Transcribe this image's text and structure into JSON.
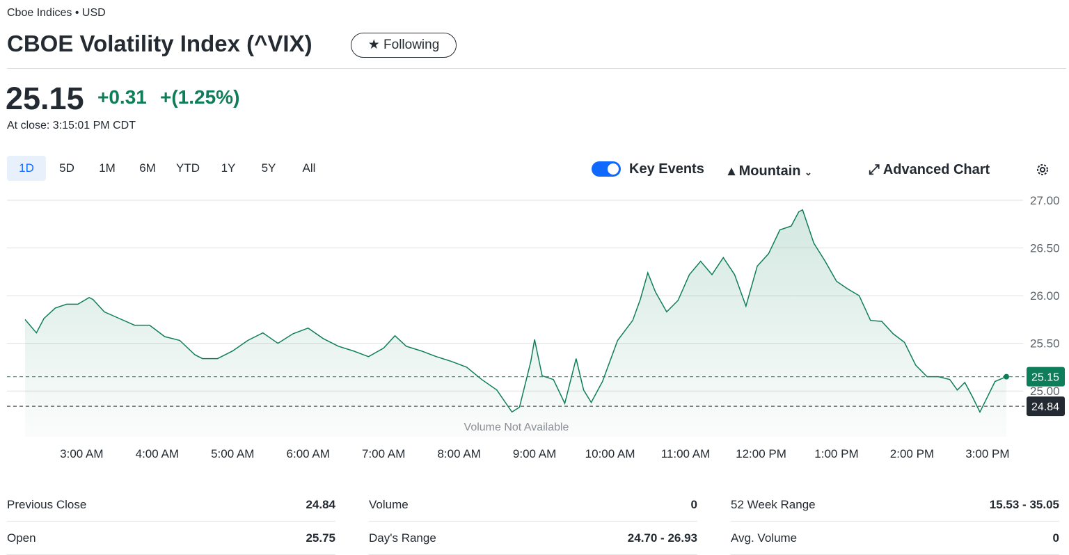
{
  "header": {
    "exchange": "Cboe Indices • USD",
    "title": "CBOE Volatility Index (^VIX)",
    "follow_button": "Following"
  },
  "quote": {
    "price": "25.15",
    "change": "+0.31",
    "change_pct": "+(1.25%)",
    "close_time": "At close: 3:15:01 PM CDT"
  },
  "ranges": [
    "1D",
    "5D",
    "1M",
    "6M",
    "YTD",
    "1Y",
    "5Y",
    "All"
  ],
  "toolbar": {
    "key_events": "Key Events",
    "chart_type": "Mountain",
    "advanced": "Advanced Chart"
  },
  "chart_data": {
    "type": "line",
    "color": "#0e7e5a",
    "x": [
      2.25,
      2.4,
      2.5,
      2.65,
      2.8,
      2.95,
      3.1,
      3.15,
      3.3,
      3.5,
      3.7,
      3.9,
      4.1,
      4.3,
      4.5,
      4.6,
      4.8,
      5.0,
      5.2,
      5.4,
      5.6,
      5.8,
      6.0,
      6.2,
      6.4,
      6.6,
      6.8,
      7.0,
      7.15,
      7.3,
      7.5,
      7.7,
      7.9,
      8.1,
      8.3,
      8.5,
      8.7,
      8.8,
      8.95,
      9.0,
      9.1,
      9.25,
      9.4,
      9.55,
      9.65,
      9.75,
      9.9,
      10.1,
      10.3,
      10.4,
      10.5,
      10.6,
      10.75,
      10.9,
      11.05,
      11.2,
      11.35,
      11.5,
      11.65,
      11.8,
      11.95,
      12.1,
      12.25,
      12.4,
      12.5,
      12.55,
      12.7,
      12.85,
      13.0,
      13.15,
      13.3,
      13.45,
      13.6,
      13.75,
      13.9,
      14.05,
      14.2,
      14.35,
      14.5,
      14.6,
      14.7,
      14.8,
      14.9,
      15.0,
      15.1,
      15.25
    ],
    "values": [
      25.75,
      25.61,
      25.76,
      25.87,
      25.91,
      25.91,
      25.98,
      25.96,
      25.83,
      25.76,
      25.69,
      25.69,
      25.57,
      25.53,
      25.38,
      25.34,
      25.34,
      25.42,
      25.53,
      25.61,
      25.5,
      25.6,
      25.66,
      25.55,
      25.47,
      25.42,
      25.36,
      25.45,
      25.58,
      25.47,
      25.42,
      25.36,
      25.31,
      25.25,
      25.12,
      25.01,
      24.78,
      24.83,
      25.31,
      25.54,
      25.16,
      25.12,
      24.87,
      25.34,
      25.01,
      24.88,
      25.1,
      25.53,
      25.74,
      25.96,
      26.24,
      26.04,
      25.83,
      25.95,
      26.22,
      26.36,
      26.22,
      26.4,
      26.22,
      25.89,
      26.31,
      26.44,
      26.69,
      26.73,
      26.88,
      26.9,
      26.55,
      26.36,
      26.15,
      26.07,
      26.0,
      25.74,
      25.73,
      25.6,
      25.51,
      25.27,
      25.15,
      25.15,
      25.12,
      25.01,
      25.09,
      24.94,
      24.78,
      24.94,
      25.1,
      25.15
    ],
    "xlim": [
      2.25,
      15.25
    ],
    "xticks": [
      {
        "value": 3,
        "label": "3:00 AM"
      },
      {
        "value": 4,
        "label": "4:00 AM"
      },
      {
        "value": 5,
        "label": "5:00 AM"
      },
      {
        "value": 6,
        "label": "6:00 AM"
      },
      {
        "value": 7,
        "label": "7:00 AM"
      },
      {
        "value": 8,
        "label": "8:00 AM"
      },
      {
        "value": 9,
        "label": "9:00 AM"
      },
      {
        "value": 10,
        "label": "10:00 AM"
      },
      {
        "value": 11,
        "label": "11:00 AM"
      },
      {
        "value": 12,
        "label": "12:00 PM"
      },
      {
        "value": 13,
        "label": "1:00 PM"
      },
      {
        "value": 14,
        "label": "2:00 PM"
      },
      {
        "value": 15,
        "label": "3:00 PM"
      }
    ],
    "ylim": [
      24.52,
      27.0
    ],
    "yticks": [
      {
        "value": 25,
        "label": "25.00"
      },
      {
        "value": 25.5,
        "label": "25.50"
      },
      {
        "value": 26,
        "label": "26.00"
      },
      {
        "value": 26.5,
        "label": "26.50"
      },
      {
        "value": 27,
        "label": "27.00"
      }
    ],
    "grid": true,
    "current": 25.15,
    "current_color": "#0e7e5a",
    "previous_close": 24.84,
    "previous_close_color": "#232a31",
    "annotation": "Volume Not Available"
  },
  "stats": [
    [
      "Previous Close",
      "24.84"
    ],
    [
      "Volume",
      "0"
    ],
    [
      "52 Week Range",
      "15.53 - 35.05"
    ],
    [
      "Open",
      "25.75"
    ],
    [
      "Day's Range",
      "24.70 - 26.93"
    ],
    [
      "Avg. Volume",
      "0"
    ]
  ]
}
